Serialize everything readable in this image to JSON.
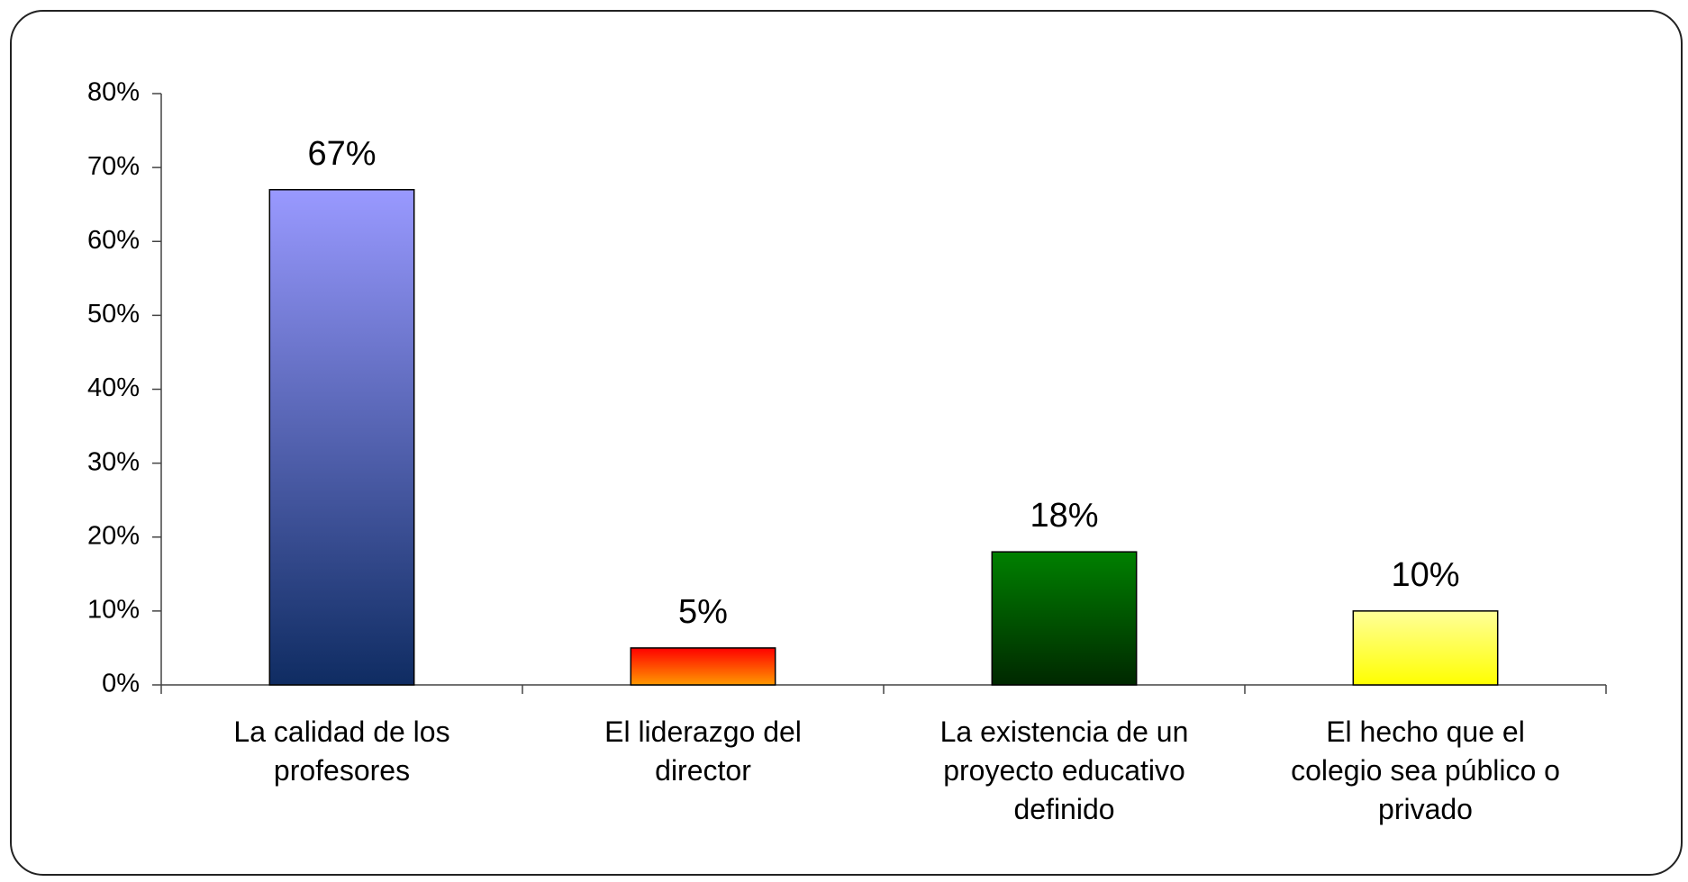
{
  "chart_data": {
    "type": "bar",
    "categories": [
      "La calidad de los profesores",
      "El liderazgo del director",
      "La existencia de un proyecto educativo definido",
      "El hecho que el colegio sea público o privado"
    ],
    "values": [
      67,
      5,
      18,
      10
    ],
    "value_labels": [
      "67%",
      "5%",
      "18%",
      "10%"
    ],
    "gradients": [
      [
        "#9999ff",
        "#0f2c62"
      ],
      [
        "#ff0000",
        "#ff9900"
      ],
      [
        "#008000",
        "#002800"
      ],
      [
        "#ffff99",
        "#ffff00"
      ]
    ],
    "ylim": [
      0,
      80
    ],
    "yticks": [
      {
        "value": 0,
        "label": "0%"
      },
      {
        "value": 10,
        "label": "10%"
      },
      {
        "value": 20,
        "label": "20%"
      },
      {
        "value": 30,
        "label": "30%"
      },
      {
        "value": 40,
        "label": "40%"
      },
      {
        "value": 50,
        "label": "50%"
      },
      {
        "value": 60,
        "label": "60%"
      },
      {
        "value": 70,
        "label": "70%"
      },
      {
        "value": 80,
        "label": "80%"
      }
    ],
    "grid": false
  }
}
